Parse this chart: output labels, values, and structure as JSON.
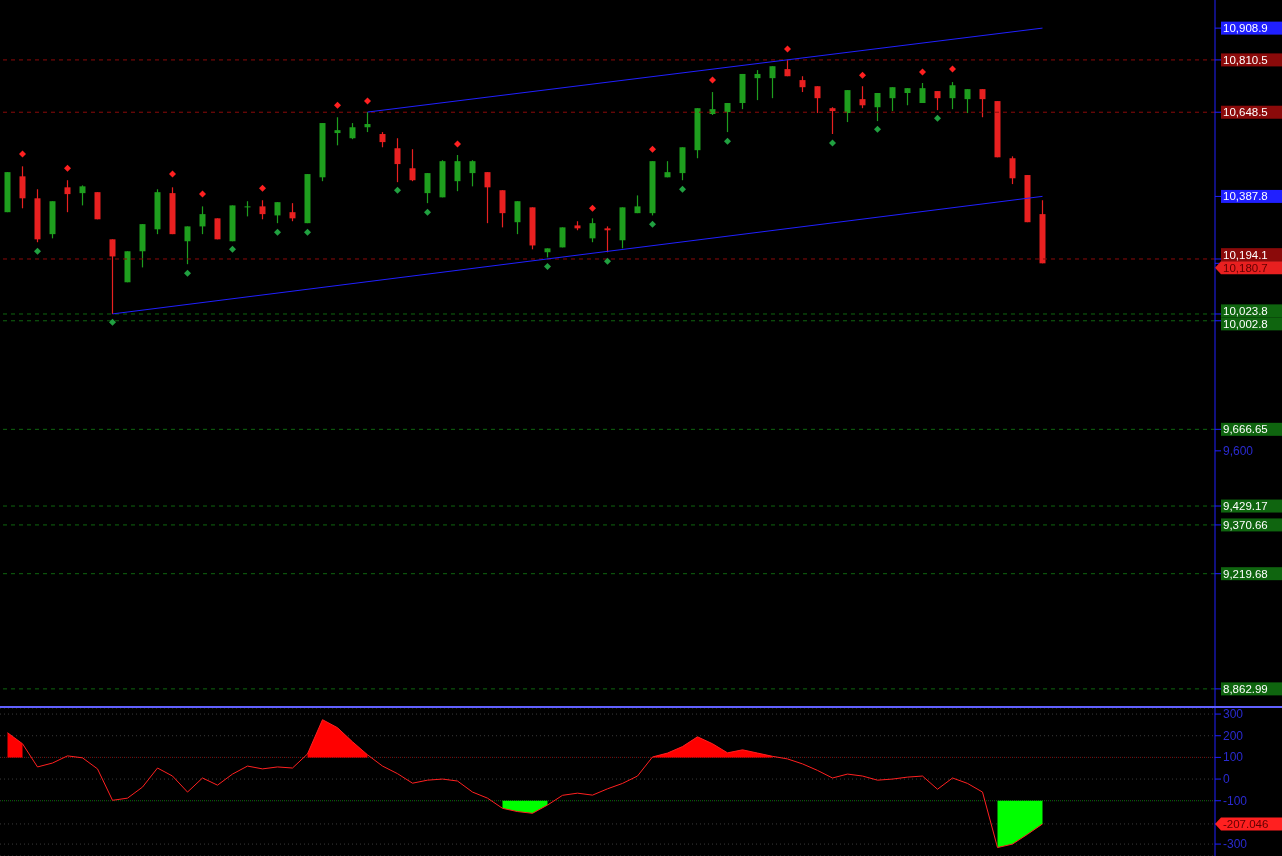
{
  "chart_data": [
    {
      "type": "candlestick",
      "categories": [
        null,
        null,
        null,
        null,
        null,
        null,
        null,
        null,
        null,
        null,
        null,
        null,
        null,
        null,
        null,
        null,
        null,
        null,
        null,
        null,
        null,
        null,
        null,
        null,
        null,
        null,
        null,
        null,
        null,
        null,
        null,
        null,
        null,
        null,
        null,
        null,
        null,
        null,
        null,
        null,
        null,
        null,
        null,
        null,
        null,
        null,
        null,
        null,
        null,
        null,
        null,
        null,
        null,
        null,
        null,
        null,
        null,
        null,
        null,
        null,
        null,
        null,
        null,
        null,
        null,
        null,
        null,
        null,
        null,
        null,
        null,
        null,
        null,
        null,
        null,
        null,
        null,
        null,
        null,
        null,
        null
      ],
      "ohlc": [
        [
          10339,
          10463,
          10339,
          10463
        ],
        [
          10450,
          10481,
          10351,
          10382
        ],
        [
          10382,
          10410,
          10246,
          10255
        ],
        [
          10271,
          10373,
          10258,
          10373
        ],
        [
          10416,
          10438,
          10339,
          10395
        ],
        [
          10398,
          10422,
          10360,
          10419
        ],
        [
          10401,
          10401,
          10317,
          10317
        ],
        [
          10255,
          10255,
          10023.8,
          10202
        ],
        [
          10122,
          10218,
          10122,
          10218
        ],
        [
          10218,
          10302,
          10168,
          10302
        ],
        [
          10286,
          10410,
          10271,
          10401
        ],
        [
          10398,
          10416,
          10271,
          10271
        ],
        [
          10249,
          10295,
          10178,
          10295
        ],
        [
          10295,
          10357,
          10271,
          10333
        ],
        [
          10320,
          10320,
          10255,
          10255
        ],
        [
          10249,
          10360,
          10249,
          10360
        ],
        [
          10357,
          10373,
          10326,
          10357
        ],
        [
          10357,
          10376,
          10317,
          10333
        ],
        [
          10329,
          10370,
          10305,
          10370
        ],
        [
          10339,
          10367,
          10311,
          10320
        ],
        [
          10305,
          10457,
          10305,
          10457
        ],
        [
          10447,
          10615,
          10435,
          10615
        ],
        [
          10584,
          10633,
          10546,
          10593
        ],
        [
          10568,
          10615,
          10565,
          10602
        ],
        [
          10602,
          10649,
          10587,
          10612
        ],
        [
          10581,
          10587,
          10540,
          10556
        ],
        [
          10537,
          10568,
          10432,
          10488
        ],
        [
          10475,
          10534,
          10435,
          10438
        ],
        [
          10398,
          10460,
          10367,
          10460
        ],
        [
          10385,
          10500,
          10385,
          10497
        ],
        [
          10435,
          10516,
          10404,
          10497
        ],
        [
          10460,
          10500,
          10419,
          10497
        ],
        [
          10463,
          10463,
          10305,
          10416
        ],
        [
          10407,
          10407,
          10292,
          10336
        ],
        [
          10308,
          10373,
          10271,
          10373
        ],
        [
          10354,
          10354,
          10224,
          10236
        ],
        [
          10215,
          10227,
          10199,
          10227
        ],
        [
          10230,
          10292,
          10230,
          10292
        ],
        [
          10298,
          10311,
          10283,
          10289
        ],
        [
          10258,
          10320,
          10246,
          10305
        ],
        [
          10289,
          10295,
          10215,
          10283
        ],
        [
          10252,
          10354,
          10227,
          10354
        ],
        [
          10336,
          10391,
          10336,
          10357
        ],
        [
          10336,
          10497,
          10329,
          10497
        ],
        [
          10447,
          10497,
          10447,
          10463
        ],
        [
          10460,
          10540,
          10438,
          10540
        ],
        [
          10531,
          10661,
          10506,
          10661
        ],
        [
          10643,
          10711,
          10640,
          10658
        ],
        [
          10649,
          10677,
          10587,
          10677
        ],
        [
          10677,
          10767,
          10658,
          10767
        ],
        [
          10754,
          10779,
          10686,
          10767
        ],
        [
          10754,
          10791,
          10692,
          10791
        ],
        [
          10782,
          10810.5,
          10760,
          10760
        ],
        [
          10748,
          10760,
          10711,
          10726
        ],
        [
          10729,
          10729,
          10646,
          10692
        ],
        [
          10661,
          10664,
          10581,
          10652
        ],
        [
          10646,
          10717,
          10618,
          10717
        ],
        [
          10689,
          10729,
          10661,
          10670
        ],
        [
          10664,
          10708,
          10621,
          10708
        ],
        [
          10692,
          10726,
          10652,
          10726
        ],
        [
          10708,
          10723,
          10670,
          10723
        ],
        [
          10677,
          10739,
          10677,
          10723
        ],
        [
          10714,
          10714,
          10655,
          10692
        ],
        [
          10692,
          10742,
          10658,
          10732
        ],
        [
          10689,
          10720,
          10646,
          10720
        ],
        [
          10720,
          10720,
          10633,
          10689
        ],
        [
          10683,
          10683,
          10509,
          10509
        ],
        [
          10506,
          10512,
          10426,
          10444
        ],
        [
          10454,
          10454,
          10308,
          10308
        ],
        [
          10333,
          10376,
          10180.7,
          10180.7
        ],
        null,
        null,
        null,
        null,
        null,
        null,
        null,
        null,
        null,
        null,
        null
      ],
      "colors": [
        "#1e9e1e",
        "#e82020",
        "#e82020",
        "#1e9e1e",
        "#e82020",
        "#1e9e1e",
        "#e82020",
        "#e82020",
        "#1e9e1e",
        "#1e9e1e",
        "#1e9e1e",
        "#e82020",
        "#1e9e1e",
        "#1e9e1e",
        "#e82020",
        "#1e9e1e",
        "#1e9e1e",
        "#e82020",
        "#1e9e1e",
        "#e82020",
        "#1e9e1e",
        "#1e9e1e",
        "#1e9e1e",
        "#1e9e1e",
        "#1e9e1e",
        "#e82020",
        "#e82020",
        "#e82020",
        "#1e9e1e",
        "#1e9e1e",
        "#1e9e1e",
        "#1e9e1e",
        "#e82020",
        "#e82020",
        "#1e9e1e",
        "#e82020",
        "#1e9e1e",
        "#1e9e1e",
        "#e82020",
        "#1e9e1e",
        "#e82020",
        "#1e9e1e",
        "#1e9e1e",
        "#1e9e1e",
        "#1e9e1e",
        "#1e9e1e",
        "#1e9e1e",
        "#1e9e1e",
        "#1e9e1e",
        "#1e9e1e",
        "#1e9e1e",
        "#1e9e1e",
        "#e82020",
        "#e82020",
        "#e82020",
        "#e82020",
        "#1e9e1e",
        "#e82020",
        "#1e9e1e",
        "#1e9e1e",
        "#1e9e1e",
        "#1e9e1e",
        "#e82020",
        "#1e9e1e",
        "#1e9e1e",
        "#e82020",
        "#e82020",
        "#e82020",
        "#e82020",
        "#e82020",
        null,
        null,
        null,
        null,
        null,
        null,
        null,
        null,
        null,
        null,
        null
      ],
      "series": [
        {
          "type": "scatter",
          "marker": "diamond",
          "color": "#ff2020",
          "values": [
            null,
            10519,
            null,
            null,
            10475,
            null,
            null,
            null,
            null,
            null,
            null,
            10457,
            null,
            10395,
            null,
            null,
            null,
            10413,
            null,
            null,
            null,
            null,
            10670,
            null,
            10683,
            null,
            null,
            null,
            null,
            null,
            10550,
            null,
            null,
            null,
            null,
            null,
            null,
            null,
            null,
            10351,
            null,
            null,
            null,
            10534,
            null,
            null,
            null,
            10748,
            null,
            null,
            null,
            null,
            10844,
            null,
            null,
            null,
            null,
            10763,
            null,
            null,
            null,
            10773,
            null,
            10782,
            null,
            null,
            null,
            null,
            null,
            null,
            null,
            null,
            null,
            null,
            null,
            null,
            null,
            null,
            null,
            null,
            null
          ]
        },
        {
          "type": "scatter",
          "marker": "diamond",
          "color": "#20a040",
          "values": [
            null,
            null,
            10218,
            null,
            null,
            null,
            null,
            9998,
            null,
            null,
            null,
            null,
            10150,
            null,
            null,
            10224,
            null,
            null,
            10277,
            null,
            10277,
            null,
            null,
            null,
            null,
            null,
            10407,
            null,
            10339,
            null,
            null,
            null,
            null,
            null,
            null,
            null,
            10171,
            null,
            null,
            null,
            10187,
            null,
            null,
            10302,
            null,
            10410,
            null,
            null,
            10559,
            null,
            null,
            null,
            null,
            null,
            null,
            10553,
            null,
            null,
            10596,
            null,
            null,
            null,
            10630,
            null,
            null,
            null,
            null,
            null,
            null,
            null,
            null,
            null,
            null,
            null,
            null,
            null,
            null,
            null,
            null,
            null,
            null
          ]
        },
        {
          "type": "line",
          "color": "#2020ff",
          "values": [
            null,
            null,
            null,
            null,
            null,
            null,
            null,
            null,
            null,
            null,
            null,
            null,
            null,
            null,
            null,
            null,
            null,
            null,
            null,
            null,
            null,
            null,
            null,
            null,
            10649,
            null,
            null,
            null,
            null,
            null,
            null,
            null,
            null,
            null,
            null,
            null,
            null,
            null,
            null,
            null,
            null,
            null,
            null,
            null,
            null,
            null,
            null,
            null,
            null,
            null,
            null,
            null,
            null,
            null,
            null,
            null,
            null,
            null,
            null,
            null,
            null,
            null,
            null,
            null,
            null,
            null,
            null,
            null,
            null,
            10909,
            null,
            null,
            null,
            null,
            null,
            null,
            null,
            null,
            null,
            null,
            null
          ]
        },
        {
          "type": "line",
          "color": "#2020ff",
          "values": [
            null,
            null,
            null,
            null,
            null,
            null,
            null,
            10024,
            null,
            null,
            null,
            null,
            null,
            null,
            null,
            null,
            null,
            null,
            null,
            null,
            null,
            null,
            null,
            null,
            null,
            null,
            null,
            null,
            null,
            null,
            null,
            null,
            null,
            null,
            null,
            null,
            null,
            null,
            null,
            null,
            null,
            null,
            null,
            null,
            null,
            null,
            null,
            null,
            null,
            null,
            null,
            null,
            null,
            null,
            null,
            null,
            null,
            null,
            null,
            null,
            null,
            null,
            null,
            null,
            null,
            null,
            null,
            null,
            null,
            10388,
            null,
            null,
            null,
            null,
            null,
            null,
            null,
            null,
            null,
            null,
            null
          ]
        }
      ],
      "ylim": [
        8810,
        10996
      ],
      "yticks": [
        {
          "value": 10908.9,
          "label": "10,908.9"
        },
        {
          "value": 10810.5,
          "label": "10,810.5"
        },
        {
          "value": 10648.5,
          "label": "10,648.5"
        },
        {
          "value": 10387.8,
          "label": "10,387.8"
        },
        {
          "value": 10194.1,
          "label": "10,194.1"
        },
        {
          "value": 10180.7,
          "label": "10,180.7"
        },
        {
          "value": 10023.8,
          "label": "10,023.8"
        },
        {
          "value": 10002.8,
          "label": "10,002.8"
        },
        {
          "value": 9666.65,
          "label": "9,666.65"
        },
        {
          "value": 9600,
          "label": "9,600"
        },
        {
          "value": 9429.17,
          "label": "9,429.17"
        },
        {
          "value": 9370.66,
          "label": "9,370.66"
        },
        {
          "value": 9219.68,
          "label": "9,219.68"
        },
        {
          "value": 8862.99,
          "label": "8,862.99"
        }
      ],
      "tick_labels": "y",
      "ref_lines": [
        {
          "axis": "y",
          "value": 10810.5,
          "color": "#8b0a0a",
          "line_style": "dashed"
        },
        {
          "axis": "y",
          "value": 10648.5,
          "color": "#8b0a0a",
          "line_style": "dashed"
        },
        {
          "axis": "y",
          "value": 10194.1,
          "color": "#8b0a0a",
          "line_style": "dashed"
        },
        {
          "axis": "y",
          "value": 10023.8,
          "color": "#0f650f",
          "line_style": "dashed"
        },
        {
          "axis": "y",
          "value": 10002.8,
          "color": "#0f650f",
          "line_style": "dashed"
        },
        {
          "axis": "y",
          "value": 9666.65,
          "color": "#0f650f",
          "line_style": "dashed"
        },
        {
          "axis": "y",
          "value": 9429.17,
          "color": "#0f650f",
          "line_style": "dashed"
        },
        {
          "axis": "y",
          "value": 9370.66,
          "color": "#0f650f",
          "line_style": "dashed"
        },
        {
          "axis": "y",
          "value": 9219.68,
          "color": "#0f650f",
          "line_style": "dashed"
        },
        {
          "axis": "y",
          "value": 8862.99,
          "color": "#0f650f",
          "line_style": "dashed"
        }
      ]
    },
    {
      "type": "line",
      "categories": [
        null,
        null,
        null,
        null,
        null,
        null,
        null,
        null,
        null,
        null,
        null,
        null,
        null,
        null,
        null,
        null,
        null,
        null,
        null,
        null,
        null,
        null,
        null,
        null,
        null,
        null,
        null,
        null,
        null,
        null,
        null,
        null,
        null,
        null,
        null,
        null,
        null,
        null,
        null,
        null,
        null,
        null,
        null,
        null,
        null,
        null,
        null,
        null,
        null,
        null,
        null,
        null,
        null,
        null,
        null,
        null,
        null,
        null,
        null,
        null,
        null,
        null,
        null,
        null,
        null,
        null,
        null,
        null,
        null,
        null,
        null,
        null,
        null,
        null,
        null,
        null,
        null,
        null,
        null,
        null,
        null
      ],
      "series": [
        {
          "color": "#ff2020",
          "values": [
            214,
            163,
            56,
            74,
            107,
            98,
            47,
            -98,
            -88,
            -37,
            51,
            14,
            -60,
            5,
            -28,
            23,
            60,
            47,
            56,
            51,
            116,
            274,
            237,
            172,
            112,
            60,
            25,
            -19,
            -5,
            0,
            -9,
            -60,
            -88,
            -135,
            -150,
            -158,
            -120,
            -75,
            -65,
            -74,
            -45,
            -20,
            14,
            102,
            120,
            150,
            195,
            163,
            121,
            135,
            120,
            105,
            93,
            70,
            40,
            5,
            23,
            14,
            -5,
            0,
            9,
            14,
            -47,
            5,
            -20,
            -60,
            -316,
            -300,
            -255,
            -207,
            null,
            null,
            null,
            null,
            null,
            null,
            null,
            null,
            null,
            null,
            null
          ],
          "lower": [
            100,
            100,
            null,
            null,
            null,
            null,
            null,
            null,
            null,
            null,
            null,
            null,
            null,
            null,
            null,
            null,
            null,
            null,
            null,
            null,
            100,
            100,
            100,
            100,
            100,
            null,
            null,
            null,
            null,
            null,
            null,
            null,
            null,
            -135,
            -150,
            -158,
            -120,
            null,
            null,
            null,
            null,
            null,
            null,
            100,
            100,
            100,
            100,
            100,
            100,
            100,
            100,
            100,
            null,
            null,
            null,
            null,
            null,
            null,
            null,
            null,
            null,
            null,
            null,
            null,
            null,
            null,
            -316,
            -300,
            -255,
            -207,
            null,
            null,
            null,
            null,
            null,
            null,
            null,
            null,
            null,
            null,
            null
          ],
          "upper": [
            214,
            163,
            null,
            null,
            null,
            null,
            null,
            null,
            null,
            null,
            null,
            null,
            null,
            null,
            null,
            null,
            null,
            null,
            null,
            null,
            116,
            274,
            237,
            172,
            112,
            null,
            null,
            null,
            null,
            null,
            null,
            null,
            null,
            -100,
            -100,
            -100,
            -100,
            null,
            null,
            null,
            null,
            null,
            null,
            102,
            120,
            150,
            195,
            163,
            121,
            135,
            120,
            105,
            null,
            null,
            null,
            null,
            null,
            null,
            null,
            null,
            null,
            null,
            null,
            null,
            null,
            null,
            -100,
            -100,
            -100,
            -100,
            null,
            null,
            null,
            null,
            null,
            null,
            null,
            null,
            null,
            null,
            null
          ]
        }
      ],
      "ylim": [
        -355,
        328
      ],
      "yticks": [
        300,
        200,
        100,
        0,
        -100,
        {
          "value": -207.046,
          "label": "-207.046"
        },
        -300
      ],
      "grid": "y",
      "tick_labels": "y",
      "ref_lines": [
        {
          "axis": "y",
          "value": 100,
          "color": "#ff0000",
          "line_style": "dotted"
        },
        {
          "axis": "y",
          "value": -100,
          "color": "#00ff00",
          "line_style": "dotted"
        }
      ]
    }
  ]
}
